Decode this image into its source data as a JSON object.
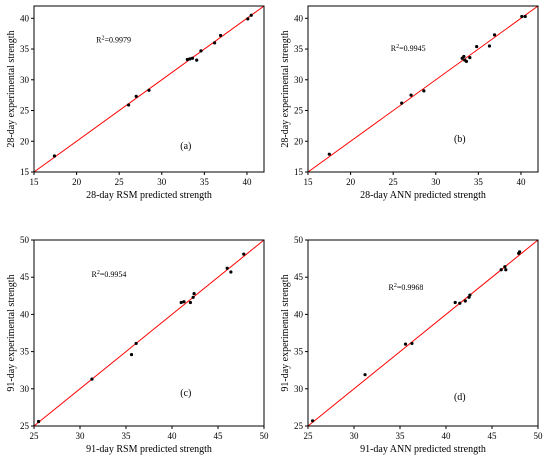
{
  "chart_data": [
    {
      "type": "scatter",
      "panel_label": "(a)",
      "xlabel": "28-day RSM predicted strength",
      "ylabel": "28-day experimental strength",
      "annotation": {
        "prefix": "R",
        "sup": "2",
        "value": "=0.9979"
      },
      "xlim": [
        15,
        42
      ],
      "ylim": [
        15,
        42
      ],
      "xticks": [
        15,
        20,
        25,
        30,
        35,
        40
      ],
      "yticks": [
        15,
        20,
        25,
        30,
        35,
        40
      ],
      "fit_line": [
        [
          15,
          15
        ],
        [
          42,
          42
        ]
      ],
      "points": [
        [
          17.4,
          17.6
        ],
        [
          26.1,
          25.9
        ],
        [
          27.0,
          27.3
        ],
        [
          28.5,
          28.3
        ],
        [
          33.0,
          33.3
        ],
        [
          33.3,
          33.4
        ],
        [
          33.6,
          33.5
        ],
        [
          34.1,
          33.2
        ],
        [
          34.6,
          34.7
        ],
        [
          36.2,
          36.0
        ],
        [
          36.9,
          37.2
        ],
        [
          40.1,
          39.9
        ],
        [
          40.5,
          40.5
        ]
      ]
    },
    {
      "type": "scatter",
      "panel_label": "(b)",
      "xlabel": "28-day ANN predicted strength",
      "ylabel": "28-day experimental strength",
      "annotation": {
        "prefix": "R",
        "sup": "2",
        "value": "=0.9945"
      },
      "xlim": [
        15,
        42
      ],
      "ylim": [
        15,
        42
      ],
      "xticks": [
        15,
        20,
        25,
        30,
        35,
        40
      ],
      "yticks": [
        15,
        20,
        25,
        30,
        35,
        40
      ],
      "fit_line": [
        [
          15,
          15
        ],
        [
          42,
          42
        ]
      ],
      "points": [
        [
          17.5,
          17.9
        ],
        [
          26.0,
          26.2
        ],
        [
          27.1,
          27.5
        ],
        [
          28.6,
          28.2
        ],
        [
          33.1,
          33.5
        ],
        [
          33.3,
          33.8
        ],
        [
          33.4,
          33.2
        ],
        [
          33.6,
          33.0
        ],
        [
          34.0,
          33.6
        ],
        [
          34.8,
          35.4
        ],
        [
          36.3,
          35.5
        ],
        [
          36.9,
          37.3
        ],
        [
          40.1,
          40.3
        ],
        [
          40.5,
          40.3
        ]
      ]
    },
    {
      "type": "scatter",
      "panel_label": "(c)",
      "xlabel": "91-day RSM predicted strength",
      "ylabel": "91-day experimental strength",
      "annotation": {
        "prefix": "R",
        "sup": "2",
        "value": "=0.9954"
      },
      "xlim": [
        25,
        50
      ],
      "ylim": [
        25,
        50
      ],
      "xticks": [
        25,
        30,
        35,
        40,
        45,
        50
      ],
      "yticks": [
        25,
        30,
        35,
        40,
        45,
        50
      ],
      "fit_line": [
        [
          25,
          25
        ],
        [
          50,
          50
        ]
      ],
      "points": [
        [
          25.5,
          25.6
        ],
        [
          31.3,
          31.3
        ],
        [
          35.6,
          34.6
        ],
        [
          36.1,
          36.1
        ],
        [
          41.0,
          41.6
        ],
        [
          41.3,
          41.7
        ],
        [
          42.0,
          41.6
        ],
        [
          42.3,
          42.3
        ],
        [
          42.4,
          42.8
        ],
        [
          46.0,
          46.2
        ],
        [
          46.4,
          45.7
        ],
        [
          47.8,
          48.1
        ]
      ]
    },
    {
      "type": "scatter",
      "panel_label": "(d)",
      "xlabel": "91-day ANN predicted strength",
      "ylabel": "91-day experimental strength",
      "annotation": {
        "prefix": "R",
        "sup": "2",
        "value": "=0.9968"
      },
      "xlim": [
        25,
        50
      ],
      "ylim": [
        25,
        50
      ],
      "xticks": [
        25,
        30,
        35,
        40,
        45,
        50
      ],
      "yticks": [
        25,
        30,
        35,
        40,
        45,
        50
      ],
      "fit_line": [
        [
          25,
          25
        ],
        [
          50,
          50
        ]
      ],
      "points": [
        [
          25.5,
          25.7
        ],
        [
          31.2,
          31.9
        ],
        [
          35.6,
          36.0
        ],
        [
          36.3,
          36.1
        ],
        [
          41.0,
          41.6
        ],
        [
          41.5,
          41.5
        ],
        [
          42.1,
          41.8
        ],
        [
          42.5,
          42.3
        ],
        [
          42.6,
          42.6
        ],
        [
          46.0,
          46.0
        ],
        [
          46.4,
          46.4
        ],
        [
          46.5,
          46.0
        ],
        [
          47.9,
          48.2
        ],
        [
          48.0,
          48.4
        ]
      ]
    }
  ],
  "colors": {
    "fit_line": "#ff0000",
    "points": "#000000",
    "axes": "#000000",
    "background": "#ffffff"
  }
}
